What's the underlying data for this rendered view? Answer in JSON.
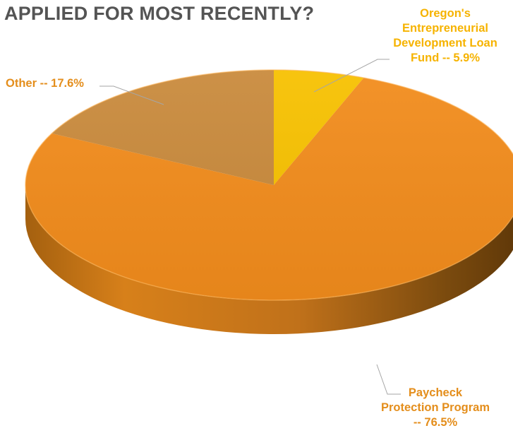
{
  "title": "APPLIED FOR MOST RECENTLY?",
  "chart_data": {
    "type": "pie",
    "style": "3d",
    "categories": [
      "Oregon's Entrepreneurial Development Loan Fund",
      "Paycheck Protection Program",
      "Other"
    ],
    "values": [
      5.9,
      76.5,
      17.6
    ],
    "unit": "%",
    "colors": [
      "#f7c100",
      "#f28c1c",
      "#c98a3c"
    ],
    "labels": [
      [
        "Oregon's",
        "Entrepreneurial",
        "Development Loan",
        "Fund -- 5.9%"
      ],
      [
        "Paycheck",
        "Protection Program",
        "-- 76.5%"
      ],
      [
        "Other -- 17.6%"
      ]
    ]
  }
}
